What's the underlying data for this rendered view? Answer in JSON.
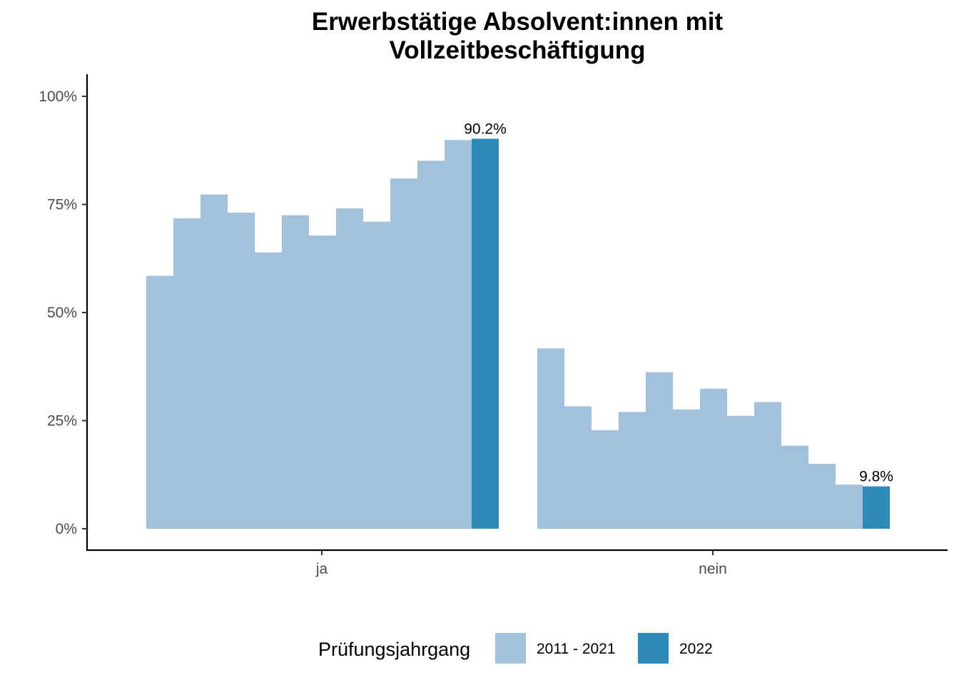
{
  "chart_data": {
    "type": "bar",
    "title_lines": [
      "Erwerbstätige Absolvent:innen mit",
      "Vollzeitbeschäftigung"
    ],
    "xlabel": "",
    "ylabel": "",
    "categories": [
      "ja",
      "nein"
    ],
    "ylim": [
      0,
      100
    ],
    "y_ticks": [
      0,
      25,
      50,
      75,
      100
    ],
    "y_tick_labels": [
      "0%",
      "25%",
      "50%",
      "75%",
      "100%"
    ],
    "series": [
      {
        "name": "2011 - 2021",
        "color": "#a2c1dd",
        "values_by_category": {
          "ja": [
            58.5,
            71.8,
            77.3,
            73.1,
            63.9,
            72.5,
            67.8,
            74.1,
            71.0,
            81.0,
            85.1,
            89.9
          ],
          "nein": [
            41.7,
            28.3,
            22.8,
            27.0,
            36.2,
            27.6,
            32.4,
            26.1,
            29.3,
            19.2,
            15.0,
            10.2
          ]
        }
      },
      {
        "name": "2022",
        "color": "#2e8bb8",
        "values_by_category": {
          "ja": [
            90.2
          ],
          "nein": [
            9.8
          ]
        }
      }
    ],
    "data_labels": {
      "ja": "90.2%",
      "nein": "9.8%"
    },
    "legend": {
      "title": "Prüfungsjahrgang",
      "position": "bottom",
      "entries": [
        "2011 - 2021",
        "2022"
      ]
    },
    "grid": false
  }
}
